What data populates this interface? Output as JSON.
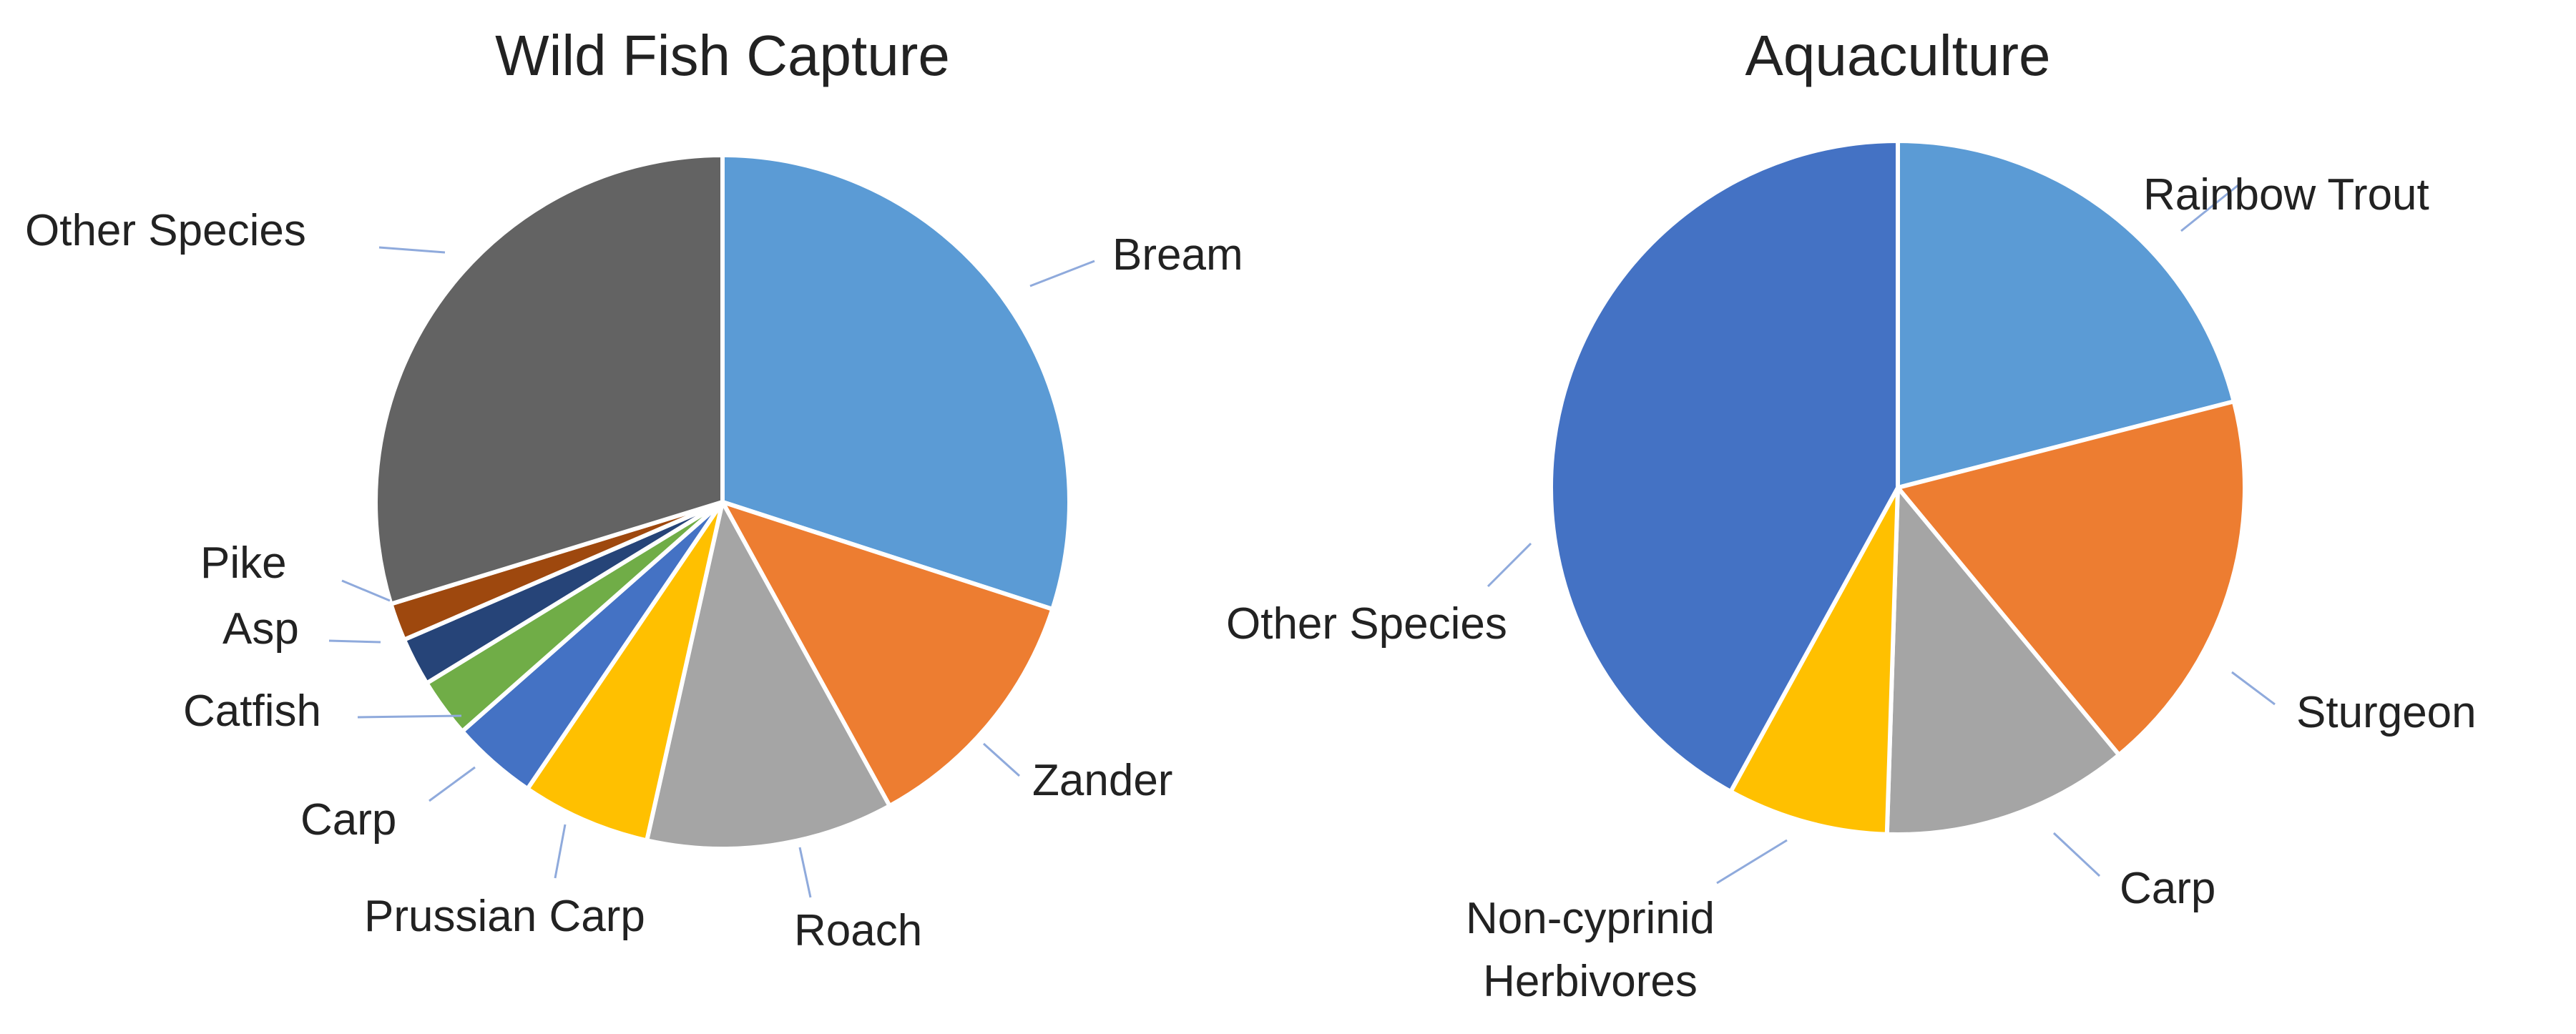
{
  "chart_data": [
    {
      "type": "pie",
      "title": "Wild Fish Capture",
      "start_angle_deg": 0,
      "direction": "clockwise",
      "slices": [
        {
          "label": "Bream",
          "value": 30.0,
          "color": "#5b9bd5"
        },
        {
          "label": "Zander",
          "value": 12.0,
          "color": "#ed7d31"
        },
        {
          "label": "Roach",
          "value": 11.5,
          "color": "#a5a5a5"
        },
        {
          "label": "Prussian Carp",
          "value": 6.0,
          "color": "#ffc000"
        },
        {
          "label": "Carp",
          "value": 4.0,
          "color": "#4472c4"
        },
        {
          "label": "Catfish",
          "value": 2.75,
          "color": "#70ad47"
        },
        {
          "label": "Asp",
          "value": 2.25,
          "color": "#264478"
        },
        {
          "label": "Pike",
          "value": 1.75,
          "color": "#9e480e"
        },
        {
          "label": "Other Species",
          "value": 29.75,
          "color": "#636363"
        }
      ]
    },
    {
      "type": "pie",
      "title": "Aquaculture",
      "start_angle_deg": 0,
      "direction": "clockwise",
      "slices": [
        {
          "label": "Rainbow Trout",
          "value": 21.0,
          "color": "#5b9bd5"
        },
        {
          "label": "Sturgeon",
          "value": 18.0,
          "color": "#ed7d31"
        },
        {
          "label": "Carp",
          "value": 11.5,
          "color": "#a5a5a5"
        },
        {
          "label": "Non-cyprinid Herbivores",
          "value": 7.5,
          "color": "#ffc000"
        },
        {
          "label": "Other Species",
          "value": 42.0,
          "color": "#4472c4"
        }
      ]
    }
  ]
}
